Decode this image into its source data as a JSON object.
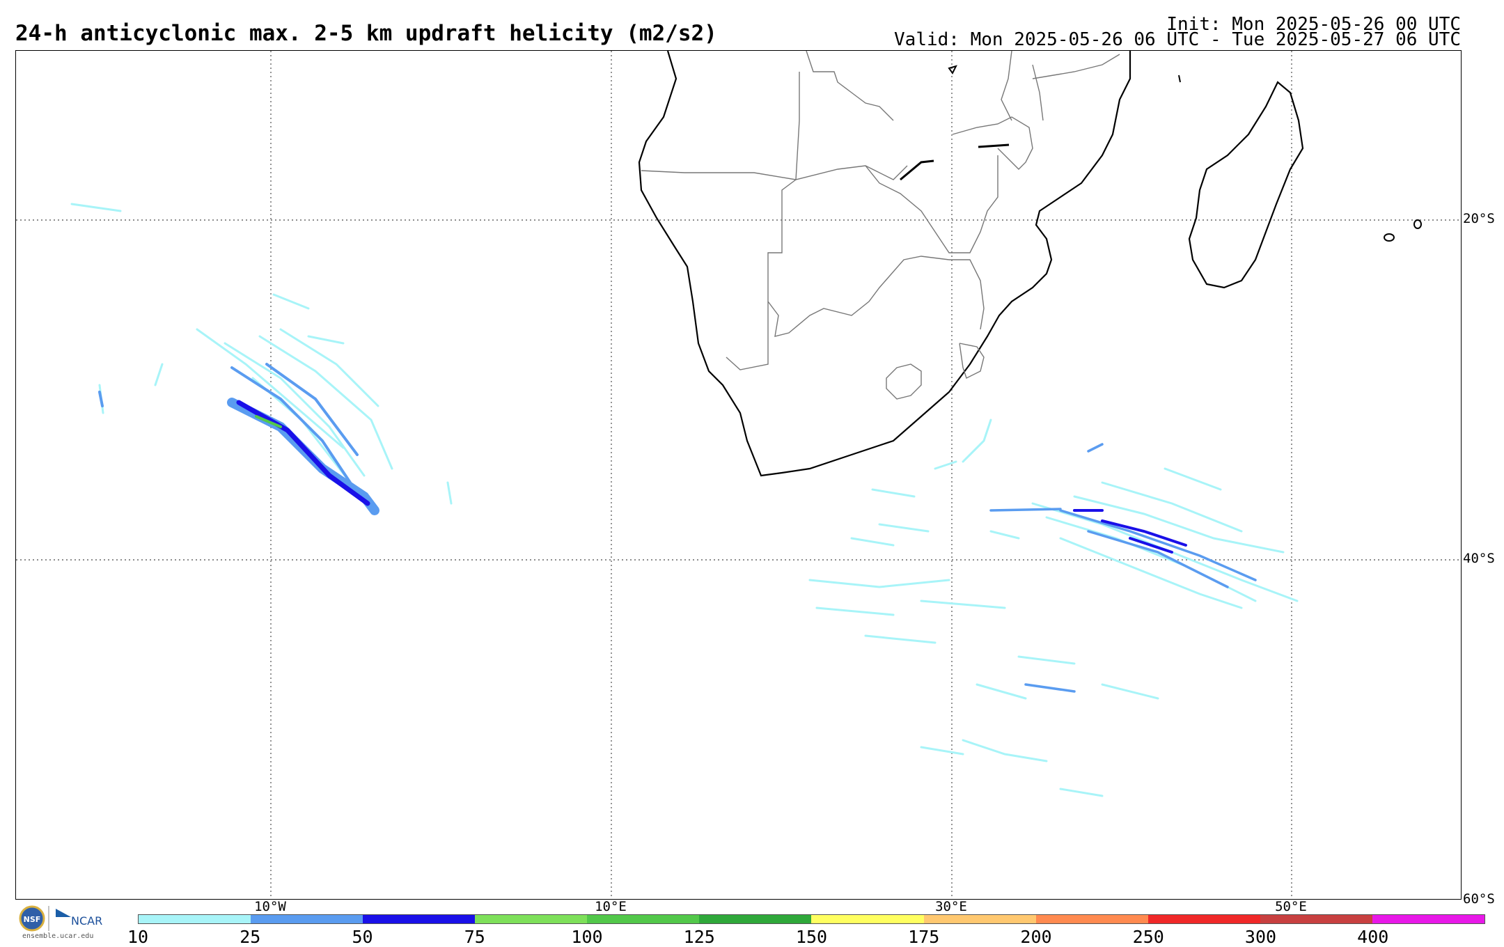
{
  "header": {
    "title": "24-h anticyclonic max. 2-5 km updraft helicity (m2/s2)",
    "init": "Init: Mon 2025-05-26 00 UTC",
    "valid": "Valid: Mon 2025-05-26 06 UTC - Tue 2025-05-27 06 UTC"
  },
  "map": {
    "lat_labels": [
      "20°S",
      "40°S",
      "60°S"
    ],
    "lon_labels": [
      "10°W",
      "10°E",
      "30°E",
      "50°E"
    ],
    "coastline_color": "#000000",
    "border_color": "#777777",
    "grid_style": "dotted"
  },
  "colorbar": {
    "ticks": [
      "10",
      "25",
      "50",
      "75",
      "100",
      "125",
      "150",
      "175",
      "200",
      "250",
      "300",
      "400"
    ],
    "colors": [
      "#a8f4f8",
      "#5a9cf0",
      "#1a10e8",
      "#7ee05a",
      "#52c84a",
      "#2fa83a",
      "#ffff60",
      "#ffc870",
      "#ff8a50",
      "#f02828",
      "#c84040",
      "#e818e8"
    ]
  },
  "footer": {
    "logo_credit": "ensemble.ucar.edu",
    "logo_name": "NCAR",
    "logo_seal": "NSF"
  }
}
